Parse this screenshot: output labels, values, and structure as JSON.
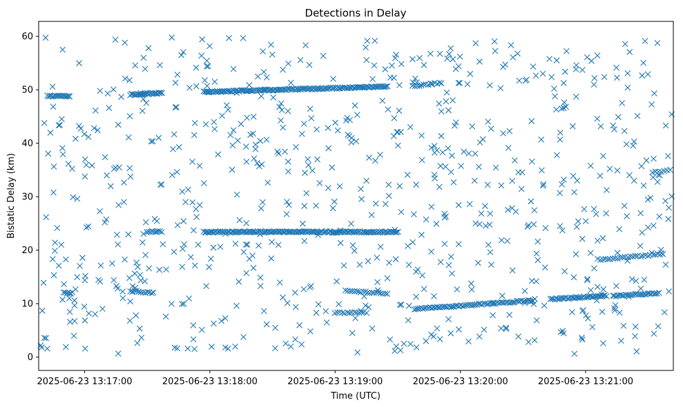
{
  "chart_data": {
    "type": "scatter",
    "title": "Detections in Delay",
    "xlabel": "Time (UTC)",
    "ylabel": "Bistatic Delay (km)",
    "marker": "x",
    "color": "#1f77b4",
    "xlim": [
      "2025-06-23 13:16:38",
      "2025-06-23 13:21:42"
    ],
    "ylim": [
      -2.5,
      62.8
    ],
    "xticks": [
      "2025-06-23 13:17:00",
      "2025-06-23 13:18:00",
      "2025-06-23 13:19:00",
      "2025-06-23 13:20:00",
      "2025-06-23 13:21:00"
    ],
    "yticks": [
      0,
      10,
      20,
      30,
      40,
      50,
      60
    ],
    "grid": false,
    "legend": "none",
    "tracks": [
      {
        "x_start": "2025-06-23 13:16:42",
        "x_end": "2025-06-23 13:16:53",
        "y_start": 48.8,
        "y_end": 48.8,
        "points": 18
      },
      {
        "x_start": "2025-06-23 13:17:22",
        "x_end": "2025-06-23 13:17:37",
        "y_start": 49.1,
        "y_end": 49.4,
        "points": 30
      },
      {
        "x_start": "2025-06-23 13:17:57",
        "x_end": "2025-06-23 13:19:25",
        "y_start": 49.6,
        "y_end": 50.6,
        "points": 150
      },
      {
        "x_start": "2025-06-23 13:19:37",
        "x_end": "2025-06-23 13:19:51",
        "y_start": 50.7,
        "y_end": 51.3,
        "points": 14
      },
      {
        "x_start": "2025-06-23 13:17:30",
        "x_end": "2025-06-23 13:17:37",
        "y_start": 23.5,
        "y_end": 23.5,
        "points": 10
      },
      {
        "x_start": "2025-06-23 13:17:57",
        "x_end": "2025-06-23 13:19:30",
        "y_start": 23.4,
        "y_end": 23.4,
        "points": 160
      },
      {
        "x_start": "2025-06-23 13:16:50",
        "x_end": "2025-06-23 13:16:54",
        "y_start": 12.0,
        "y_end": 12.0,
        "points": 7
      },
      {
        "x_start": "2025-06-23 13:17:22",
        "x_end": "2025-06-23 13:17:33",
        "y_start": 12.4,
        "y_end": 12.0,
        "points": 12
      },
      {
        "x_start": "2025-06-23 13:19:05",
        "x_end": "2025-06-23 13:19:25",
        "y_start": 12.4,
        "y_end": 11.9,
        "points": 20
      },
      {
        "x_start": "2025-06-23 13:19:00",
        "x_end": "2025-06-23 13:19:15",
        "y_start": 8.3,
        "y_end": 8.3,
        "points": 14
      },
      {
        "x_start": "2025-06-23 13:19:38",
        "x_end": "2025-06-23 13:20:35",
        "y_start": 9.0,
        "y_end": 10.6,
        "points": 70
      },
      {
        "x_start": "2025-06-23 13:20:43",
        "x_end": "2025-06-23 13:21:10",
        "y_start": 10.8,
        "y_end": 11.5,
        "points": 40
      },
      {
        "x_start": "2025-06-23 13:21:13",
        "x_end": "2025-06-23 13:21:35",
        "y_start": 11.4,
        "y_end": 12.0,
        "points": 30
      },
      {
        "x_start": "2025-06-23 13:21:07",
        "x_end": "2025-06-23 13:21:37",
        "y_start": 18.2,
        "y_end": 19.3,
        "points": 26
      },
      {
        "x_start": "2025-06-23 13:21:32",
        "x_end": "2025-06-23 13:21:42",
        "y_start": 34.6,
        "y_end": 35.0,
        "points": 8
      }
    ],
    "clutter": {
      "x_start": "2025-06-23 13:16:38",
      "x_end": "2025-06-23 13:21:42",
      "y_min": 0.5,
      "y_max": 59.8,
      "points": 780
    }
  }
}
